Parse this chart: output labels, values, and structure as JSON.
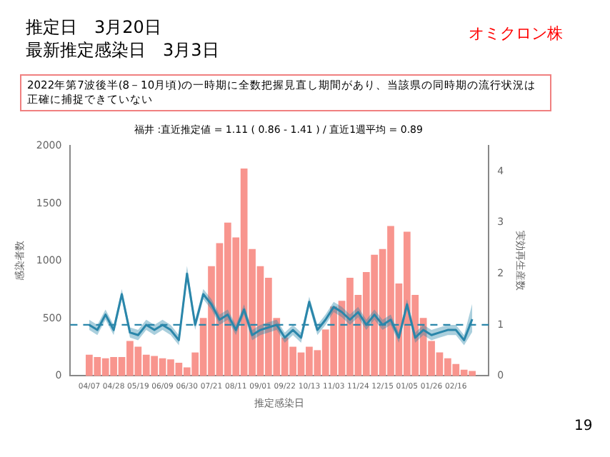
{
  "chart_data": {
    "type": "bar",
    "title": "推定日　3月20日",
    "subtitle": "最新推定感染日　3月3日",
    "annotations": [
      "オミクロン株",
      "2022年第7波後半(8－10月頃)の一時期に全数把握見直し期間があり、当該県の同時期の流行状況は正確に捕捉できていない",
      "福井 :直近推定値 = 1.11 ( 0.86 - 1.41 ) / 直近1週平均 = 0.89",
      "19"
    ],
    "xlabel": "推定感染日",
    "ylabel": "感染者数",
    "y2label": "実効再生産数",
    "x": [
      "2022-04-07",
      "2022-04-14",
      "2022-04-21",
      "2022-04-28",
      "2022-05-05",
      "2022-05-12",
      "2022-05-19",
      "2022-05-26",
      "2022-06-02",
      "2022-06-09",
      "2022-06-16",
      "2022-06-23",
      "2022-06-30",
      "2022-07-07",
      "2022-07-14",
      "2022-07-21",
      "2022-07-28",
      "2022-08-04",
      "2022-08-11",
      "2022-08-18",
      "2022-08-25",
      "2022-09-01",
      "2022-09-08",
      "2022-09-15",
      "2022-09-22",
      "2022-09-29",
      "2022-10-06",
      "2022-10-13",
      "2022-10-20",
      "2022-10-27",
      "2022-11-03",
      "2022-11-10",
      "2022-11-17",
      "2022-11-24",
      "2022-12-01",
      "2022-12-08",
      "2022-12-15",
      "2022-12-22",
      "2022-12-29",
      "2023-01-05",
      "2023-01-12",
      "2023-01-19",
      "2023-01-26",
      "2023-02-02",
      "2023-02-09",
      "2023-02-16",
      "2023-02-23",
      "2023-03-02"
    ],
    "series": [
      {
        "color": "#f8958e",
        "values": [
          180,
          160,
          150,
          160,
          160,
          300,
          250,
          180,
          170,
          150,
          140,
          110,
          70,
          200,
          500,
          950,
          1150,
          1330,
          1200,
          1800,
          1100,
          950,
          850,
          500,
          330,
          250,
          200,
          250,
          220,
          400,
          600,
          650,
          850,
          700,
          900,
          1050,
          1100,
          1300,
          800,
          1250,
          700,
          500,
          300,
          200,
          150,
          100,
          50,
          40
        ]
      },
      {
        "type": "line",
        "axis": "y2",
        "color": "#2a86aa",
        "values": [
          1.0,
          0.9,
          1.2,
          0.9,
          1.6,
          0.85,
          0.8,
          1.0,
          0.9,
          1.0,
          0.9,
          0.7,
          2.0,
          1.0,
          1.6,
          1.4,
          1.1,
          1.2,
          0.9,
          1.3,
          0.8,
          0.9,
          0.95,
          1.0,
          0.75,
          0.9,
          0.75,
          1.45,
          0.9,
          1.1,
          1.35,
          1.25,
          1.1,
          1.25,
          1.0,
          1.2,
          1.0,
          1.1,
          0.75,
          1.4,
          0.75,
          0.9,
          0.8,
          0.85,
          0.9,
          0.9,
          0.7,
          1.11
        ],
        "lower": [
          0.9,
          0.8,
          1.1,
          0.8,
          1.5,
          0.75,
          0.7,
          0.9,
          0.8,
          0.9,
          0.8,
          0.6,
          1.85,
          0.9,
          1.5,
          1.3,
          1.0,
          1.1,
          0.8,
          1.2,
          0.7,
          0.8,
          0.85,
          0.9,
          0.65,
          0.8,
          0.65,
          1.35,
          0.8,
          1.0,
          1.25,
          1.15,
          1.0,
          1.15,
          0.9,
          1.1,
          0.9,
          1.0,
          0.65,
          1.3,
          0.65,
          0.8,
          0.7,
          0.75,
          0.8,
          0.8,
          0.6,
          0.86
        ],
        "upper": [
          1.1,
          1.0,
          1.3,
          1.0,
          1.7,
          0.95,
          0.9,
          1.1,
          1.0,
          1.1,
          1.0,
          0.8,
          2.15,
          1.1,
          1.7,
          1.5,
          1.2,
          1.3,
          1.0,
          1.4,
          0.9,
          1.0,
          1.05,
          1.1,
          0.85,
          1.0,
          0.85,
          1.55,
          1.0,
          1.2,
          1.45,
          1.35,
          1.2,
          1.35,
          1.1,
          1.3,
          1.1,
          1.2,
          0.85,
          1.5,
          0.85,
          1.0,
          0.9,
          0.95,
          1.0,
          1.0,
          0.8,
          1.41
        ]
      }
    ],
    "xlim": [
      "2022-04-02",
      "2023-03-05"
    ],
    "xticks": [
      {
        "value": "2022-04-07",
        "label": "04/07"
      },
      {
        "value": "2022-04-28",
        "label": "04/28"
      },
      {
        "value": "2022-05-19",
        "label": "05/19"
      },
      {
        "value": "2022-06-09",
        "label": "06/09"
      },
      {
        "value": "2022-06-30",
        "label": "06/30"
      },
      {
        "value": "2022-07-21",
        "label": "07/21"
      },
      {
        "value": "2022-08-11",
        "label": "08/11"
      },
      {
        "value": "2022-09-01",
        "label": "09/01"
      },
      {
        "value": "2022-09-22",
        "label": "09/22"
      },
      {
        "value": "2022-10-13",
        "label": "10/13"
      },
      {
        "value": "2022-11-03",
        "label": "11/03"
      },
      {
        "value": "2022-11-24",
        "label": "11/24"
      },
      {
        "value": "2022-12-15",
        "label": "12/15"
      },
      {
        "value": "2023-01-05",
        "label": "01/05"
      },
      {
        "value": "2023-01-26",
        "label": "01/26"
      },
      {
        "value": "2023-02-16",
        "label": "02/16"
      }
    ],
    "ylim": [
      0,
      2000
    ],
    "yticks": [
      0,
      500,
      1000,
      1500,
      2000
    ],
    "y2lim": [
      0,
      4.5
    ],
    "y2ticks": [
      0,
      1,
      2,
      3,
      4
    ],
    "ref_lines": [
      {
        "axis": "y2",
        "value": 1,
        "color": "#2a86aa",
        "line_style": "dashed"
      }
    ]
  }
}
